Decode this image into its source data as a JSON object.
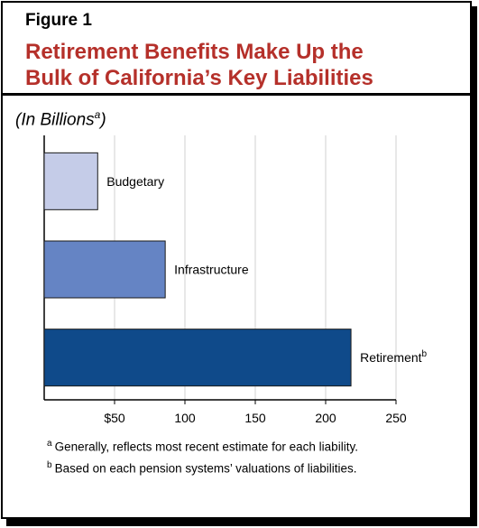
{
  "figure": {
    "label": "Figure 1"
  },
  "chart_data": {
    "type": "bar",
    "orientation": "horizontal",
    "title_lines": [
      "Retirement Benefits Make Up the",
      "Bulk of California’s Key Liabilities"
    ],
    "subtitle": "(In Billions",
    "subtitle_marker": "a",
    "subtitle_close": ")",
    "categories": [
      "Budgetary",
      "Infrastructure",
      "Retirement"
    ],
    "category_markers": [
      "",
      "",
      "b"
    ],
    "values": [
      38,
      86,
      218
    ],
    "colors": [
      "#c5cce8",
      "#6584c4",
      "#0f4a8a"
    ],
    "xlim": [
      0,
      250
    ],
    "xticks": [
      50,
      100,
      150,
      200,
      250
    ],
    "xtick_labels": [
      "$50",
      "100",
      "150",
      "200",
      "250"
    ],
    "grid": true,
    "footnotes": [
      {
        "marker": "a",
        "text": "Generally, reflects most recent estimate for each liability."
      },
      {
        "marker": "b",
        "text": "Based on each pension systems’ valuations of liabilities."
      }
    ]
  }
}
